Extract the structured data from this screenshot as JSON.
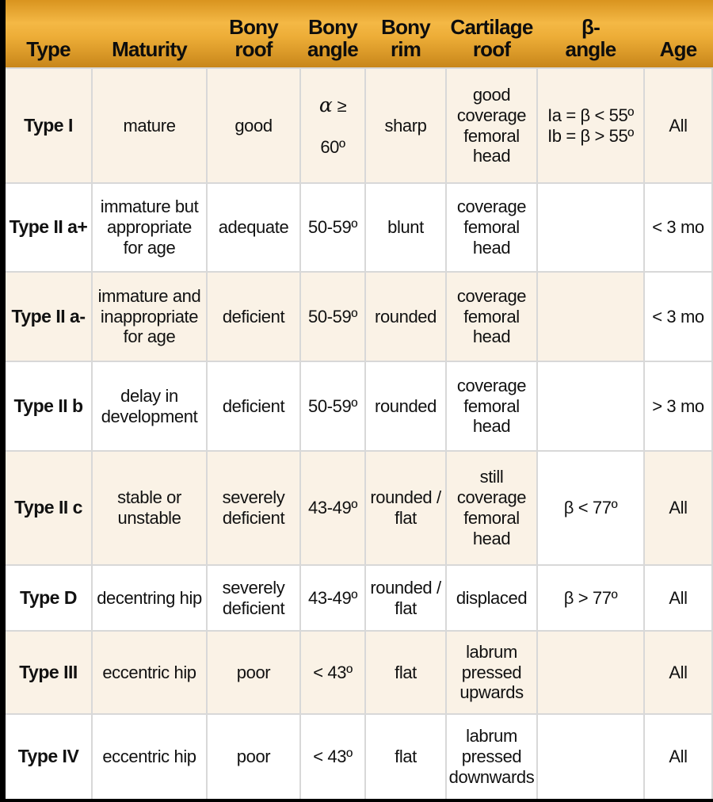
{
  "header": {
    "columns": [
      "Type",
      "Maturity",
      "Bony\nroof",
      "Bony\nangle",
      "Bony\nrim",
      "Cartilage\nroof",
      "β-\nangle",
      "Age"
    ]
  },
  "rows": [
    {
      "type": "Type I",
      "maturity": "mature",
      "bony_roof": "good",
      "bony_angle": {
        "symbol": "α",
        "op": " ≥",
        "value": "60º"
      },
      "bony_rim": "sharp",
      "cartilage_roof": "good coverage femoral head",
      "beta_angle": "Ia = β < 55º\nIb = β > 55º",
      "age": "All"
    },
    {
      "type": "Type II a+",
      "maturity": "immature but appropriate for age",
      "bony_roof": "adequate",
      "bony_angle": "50-59º",
      "bony_rim": "blunt",
      "cartilage_roof": "coverage femoral head",
      "beta_angle": "",
      "age": "< 3 mo"
    },
    {
      "type": "Type II a-",
      "maturity": "immature and inappropriate for age",
      "bony_roof": "deficient",
      "bony_angle": "50-59º",
      "bony_rim": "rounded",
      "cartilage_roof": "coverage femoral head",
      "beta_angle": "",
      "age": "< 3 mo"
    },
    {
      "type": "Type II b",
      "maturity": "delay in development",
      "bony_roof": "deficient",
      "bony_angle": "50-59º",
      "bony_rim": "rounded",
      "cartilage_roof": "coverage femoral head",
      "beta_angle": "",
      "age": "> 3 mo"
    },
    {
      "type": "Type II c",
      "maturity": "stable or unstable",
      "bony_roof": "severely deficient",
      "bony_angle": "43-49º",
      "bony_rim": "rounded / flat",
      "cartilage_roof": "still coverage femoral head",
      "beta_angle": "β < 77º",
      "age": "All"
    },
    {
      "type": "Type D",
      "maturity": "decentring hip",
      "bony_roof": "severely deficient",
      "bony_angle": "43-49º",
      "bony_rim": "rounded / flat",
      "cartilage_roof": "displaced",
      "beta_angle": "β > 77º",
      "age": "All"
    },
    {
      "type": "Type III",
      "maturity": "eccentric hip",
      "bony_roof": "poor",
      "bony_angle": "< 43º",
      "bony_rim": "flat",
      "cartilage_roof": "labrum pressed upwards",
      "beta_angle": "",
      "age": "All"
    },
    {
      "type": "Type IV",
      "maturity": "eccentric hip",
      "bony_roof": "poor",
      "bony_angle": "< 43º",
      "bony_rim": "flat",
      "cartilage_roof": "labrum pressed downwards",
      "beta_angle": "",
      "age": "All"
    }
  ],
  "colors": {
    "header_gradient_top": "#d9941f",
    "header_gradient_bright": "#f4b845",
    "header_gradient_bottom": "#c8861a",
    "row_cream": "#faf2e6",
    "row_white": "#ffffff",
    "grid_line": "#d8d8d8",
    "outer_border": "#000000",
    "text": "#111111"
  }
}
